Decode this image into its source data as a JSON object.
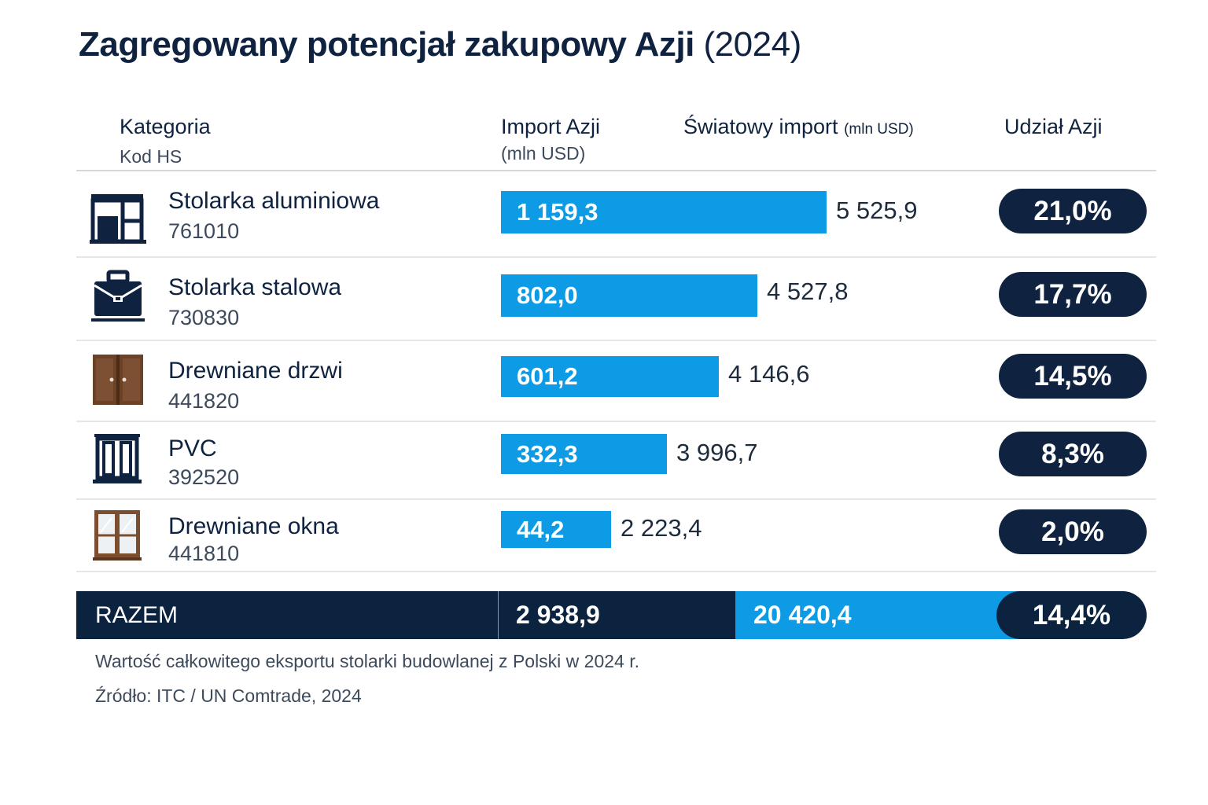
{
  "title": {
    "main": "Zagregowany potencjał zakupowy Azji",
    "year": "(2024)"
  },
  "headers": {
    "category": "Kategoria",
    "hs_code": "Kod HS",
    "import_asia": "Import Azji",
    "import_asia_unit": "(mln USD)",
    "world_import": "Światowy import",
    "world_import_unit": "(mln USD)",
    "share": "Udział Azji"
  },
  "rows": [
    {
      "name": "Stolarka aluminiowa",
      "code": "761010",
      "import_label": "1 159,3",
      "world_label": "5 525,9",
      "share_label": "21,0%",
      "icon": "aluminium-window-icon"
    },
    {
      "name": "Stolarka stalowa",
      "code": "730830",
      "import_label": "802,0",
      "world_label": "4 527,8",
      "share_label": "17,7%",
      "icon": "briefcase-icon"
    },
    {
      "name": "Drewniane drzwi",
      "code": "441820",
      "import_label": "601,2",
      "world_label": "4 146,6",
      "share_label": "14,5%",
      "icon": "wooden-door-icon"
    },
    {
      "name": "PVC",
      "code": "392520",
      "import_label": "332,3",
      "world_label": "3 996,7",
      "share_label": "8,3%",
      "icon": "pvc-window-icon"
    },
    {
      "name": "Drewniane okna",
      "code": "441810",
      "import_label": "44,2",
      "world_label": "2 223,4",
      "share_label": "2,0%",
      "icon": "wooden-window-icon"
    }
  ],
  "total": {
    "label": "RAZEM",
    "import_label": "2 938,9",
    "world_label": "20 420,4",
    "share_label": "14,4%"
  },
  "notes": {
    "export": "Wartość całkowitego eksportu stolarki budowlanej z Polski w 2024 r.",
    "source": "Źródło: ITC / UN Comtrade, 2024"
  },
  "colors": {
    "navy": "#0f2340",
    "blue": "#0d9be6"
  },
  "chart_data": {
    "type": "bar",
    "title": "Zagregowany potencjał zakupowy Azji (2024)",
    "categories": [
      "Stolarka aluminiowa",
      "Stolarka stalowa",
      "Drewniane drzwi",
      "PVC",
      "Drewniane okna"
    ],
    "hs_codes": [
      "761010",
      "730830",
      "441820",
      "392520",
      "441810"
    ],
    "series": [
      {
        "name": "Import Azji (mln USD)",
        "values": [
          1159.3,
          802.0,
          601.2,
          332.3,
          44.2
        ]
      },
      {
        "name": "Światowy import (mln USD)",
        "values": [
          5525.9,
          4527.8,
          4146.6,
          3996.7,
          2223.4
        ]
      },
      {
        "name": "Udział Azji (%)",
        "values": [
          21.0,
          17.7,
          14.5,
          8.3,
          2.0
        ]
      }
    ],
    "total": {
      "import_asia": 2938.9,
      "world_import": 20420.4,
      "share": 14.4
    },
    "xlabel": "",
    "ylabel": "mln USD",
    "xlim": [
      0,
      1200
    ]
  }
}
